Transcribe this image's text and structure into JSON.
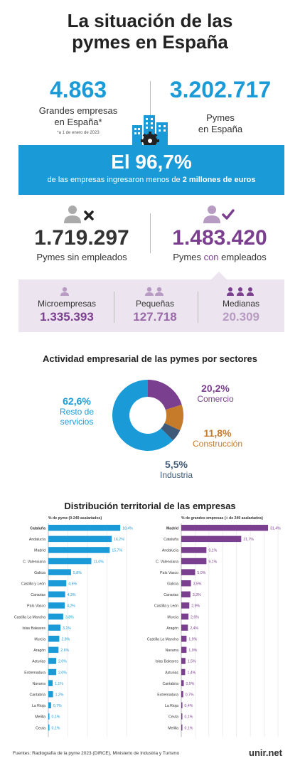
{
  "title_line1": "La situación de las",
  "title_line2": "pymes en España",
  "stats": {
    "large_number": "4.863",
    "large_label1": "Grandes empresas",
    "large_label2": "en España*",
    "large_note": "*a 1 de enero de 2023",
    "sme_number": "3.202.717",
    "sme_label1": "Pymes",
    "sme_label2": "en España"
  },
  "banner": {
    "percent": "El 96,7%",
    "text_pre": "de las empresas ingresaron menos de ",
    "text_bold": "2 millones de euros"
  },
  "employees": {
    "without_number": "1.719.297",
    "without_label": "Pymes sin empleados",
    "with_number": "1.483.420",
    "with_label_pre": "Pymes ",
    "with_label_con": "con",
    "with_label_post": " empleados"
  },
  "sizes": [
    {
      "label": "Microempresas",
      "value": "1.335.393"
    },
    {
      "label": "Pequeñas",
      "value": "127.718"
    },
    {
      "label": "Medianas",
      "value": "20.309"
    }
  ],
  "sectors_title": "Actividad empresarial de las pymes por sectores",
  "territory_title": "Distribución territorial de las empresas",
  "footer": {
    "source": "Fuentes: Radiografía de la pyme 2023 (DIRCE), Ministerio de Industria y Turismo",
    "brand": "unir.net"
  },
  "colors": {
    "blue": "#1a9bd7",
    "purple": "#7b3f8f",
    "orange": "#c67b2a",
    "slate": "#3e5a78",
    "light_purple": "#ece4ee"
  },
  "chart_data": [
    {
      "type": "pie",
      "title": "Actividad empresarial de las pymes por sectores",
      "categories": [
        "Resto de servicios",
        "Comercio",
        "Construcción",
        "Industria"
      ],
      "values": [
        62.6,
        20.2,
        11.8,
        5.5
      ],
      "labels": [
        "62,6%",
        "20,2%",
        "11,8%",
        "5,5%"
      ],
      "slice_colors": [
        "#1a9bd7",
        "#7b3f8f",
        "#c67b2a",
        "#3e5a78"
      ],
      "donut": true
    },
    {
      "type": "bar",
      "orientation": "horizontal",
      "title": "% de pyme (0-249 asalariados)",
      "categories": [
        "Cataluña",
        "Andalucía",
        "Madrid",
        "C. Valenciana",
        "Galicia",
        "Castilla y León",
        "Canarias",
        "País Vasco",
        "Castilla La Mancha",
        "Islas Baleares",
        "Murcia",
        "Aragón",
        "Asturias",
        "Extremadura",
        "Navarra",
        "Cantabria",
        "La Rioja",
        "Melilla",
        "Ceuta"
      ],
      "values": [
        18.4,
        16.2,
        15.7,
        11.0,
        5.8,
        4.6,
        4.3,
        4.2,
        3.8,
        3.1,
        2.8,
        2.6,
        2.0,
        2.0,
        1.1,
        1.2,
        0.7,
        0.1,
        0.1
      ],
      "value_labels": [
        "18,4%",
        "16,2%",
        "15,7%",
        "11,0%",
        "5,8%",
        "4,6%",
        "4,3%",
        "4,2%",
        "3,8%",
        "3,1%",
        "2,8%",
        "2,6%",
        "2,0%",
        "2,0%",
        "1,1%",
        "1,2%",
        "0,7%",
        "0,1%",
        "0,1%"
      ],
      "xlim": [
        0,
        20
      ],
      "xticks": [
        "0",
        "5",
        "10",
        "15",
        "20"
      ],
      "color": "#1a9bd7"
    },
    {
      "type": "bar",
      "orientation": "horizontal",
      "title": "% de grandes empresas (+ de 249 asalariados)",
      "categories": [
        "Madrid",
        "Cataluña",
        "Andalucía",
        "C. Valenciana",
        "País Vasco",
        "Galicia",
        "Canarias",
        "Castilla y León",
        "Murcia",
        "Aragón",
        "Castilla La Mancha",
        "Navarra",
        "Islas Baleares",
        "Asturias",
        "Cantabria",
        "Extremadura",
        "La Rioja",
        "Ceuta",
        "Melilla"
      ],
      "values": [
        31.4,
        21.7,
        9.1,
        9.1,
        5.0,
        3.5,
        3.3,
        2.9,
        2.6,
        2.4,
        1.9,
        1.9,
        1.5,
        1.4,
        0.9,
        0.7,
        0.4,
        0.1,
        0.1
      ],
      "value_labels": [
        "31,4%",
        "21,7%",
        "9,1%",
        "9,1%",
        "5,0%",
        "3,5%",
        "3,3%",
        "2,9%",
        "2,6%",
        "2,4%",
        "1,9%",
        "1,9%",
        "1,5%",
        "1,4%",
        "0,9%",
        "0,7%",
        "0,4%",
        "0,1%",
        "0,1%"
      ],
      "xlim": [
        0,
        35
      ],
      "xticks": [
        "0",
        "5",
        "10",
        "15",
        "20",
        "25",
        "30",
        "35"
      ],
      "color": "#7b3f8f"
    }
  ]
}
